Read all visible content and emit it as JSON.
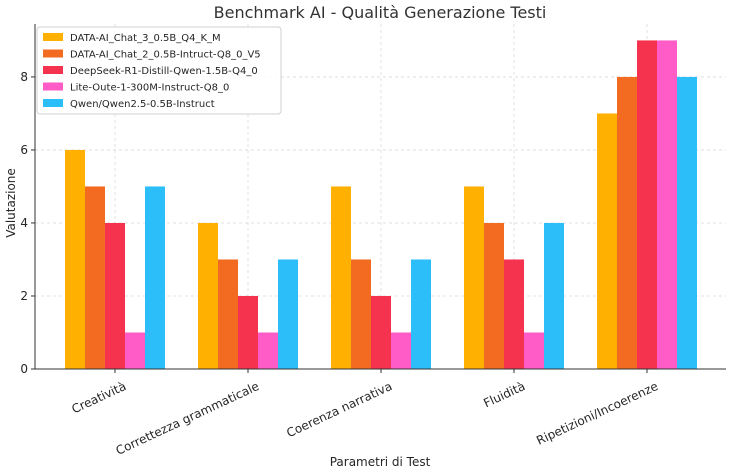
{
  "chart_data": {
    "type": "bar",
    "title": "Benchmark AI - Qualità Generazione Testi",
    "xlabel": "Parametri di Test",
    "ylabel": "Valutazione",
    "ylim": [
      0,
      9.45
    ],
    "yticks": [
      0,
      2,
      4,
      6,
      8
    ],
    "grid": true,
    "legend_position": "top-left",
    "categories": [
      "Creatività",
      "Correttezza grammaticale",
      "Coerenza narrativa",
      "Fluidità",
      "Ripetizioni/Incoerenze"
    ],
    "series": [
      {
        "name": "DATA-AI_Chat_3_0.5B_Q4_K_M",
        "color": "#FFB000",
        "values": [
          6,
          4,
          5,
          5,
          7
        ]
      },
      {
        "name": "DATA-AI_Chat_2_0.5B-Intruct-Q8_0_V5",
        "color": "#F26B21",
        "values": [
          5,
          3,
          3,
          4,
          8
        ]
      },
      {
        "name": "DeepSeek-R1-Distill-Qwen-1.5B-Q4_0",
        "color": "#F5334F",
        "values": [
          4,
          2,
          2,
          3,
          9
        ]
      },
      {
        "name": "Lite-Oute-1-300M-Instruct-Q8_0",
        "color": "#FF5CC8",
        "values": [
          1,
          1,
          1,
          1,
          9
        ]
      },
      {
        "name": "Qwen/Qwen2.5-0.5B-Instruct",
        "color": "#2BBEF8",
        "values": [
          5,
          3,
          3,
          4,
          8
        ]
      }
    ]
  }
}
